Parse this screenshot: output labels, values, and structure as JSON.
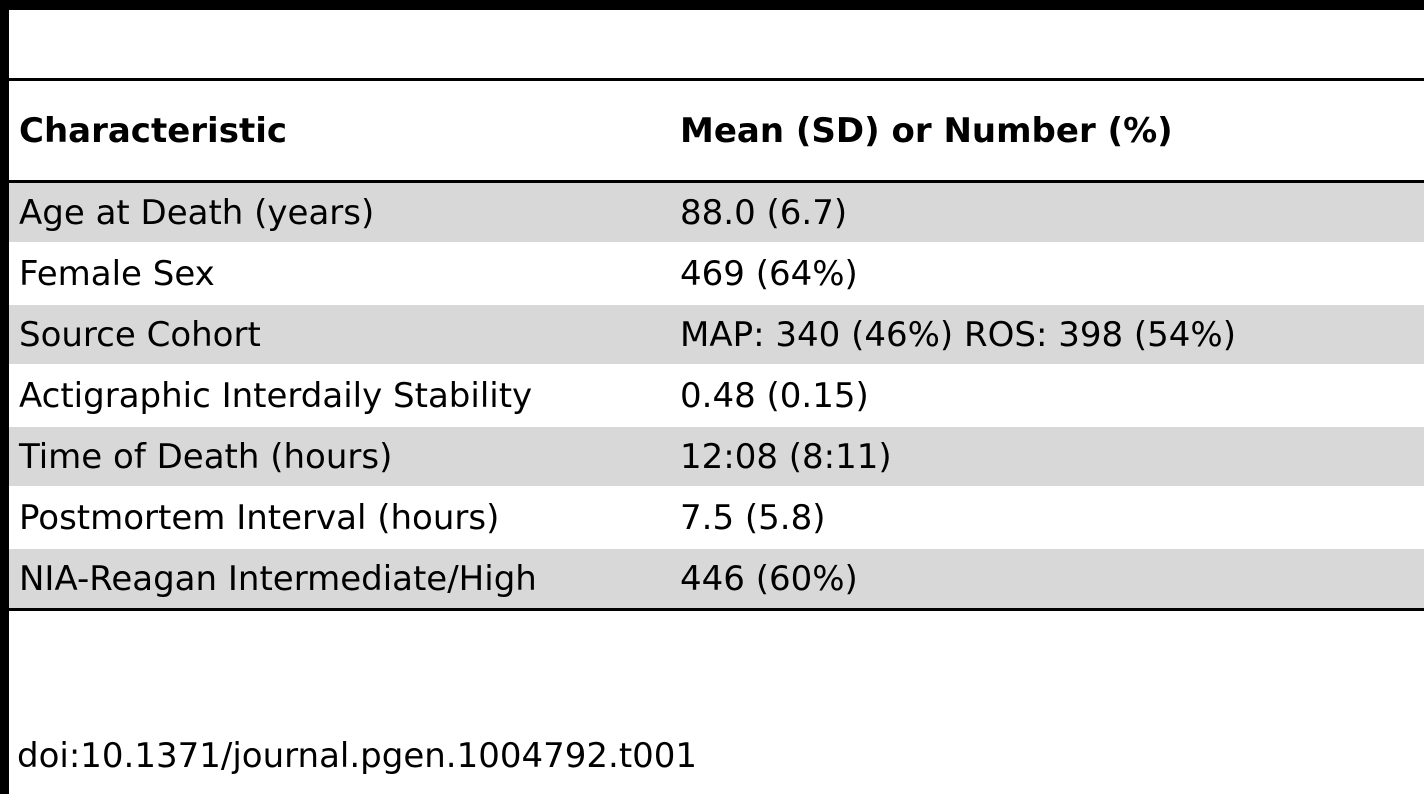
{
  "table": {
    "headers": [
      "Characteristic",
      "Mean (SD) or Number (%)"
    ],
    "rows": [
      [
        "Age at Death (years)",
        "88.0 (6.7)"
      ],
      [
        "Female Sex",
        "469 (64%)"
      ],
      [
        "Source Cohort",
        "MAP: 340 (46%) ROS: 398 (54%)"
      ],
      [
        "Actigraphic Interdaily Stability",
        "0.48 (0.15)"
      ],
      [
        "Time of Death (hours)",
        "12:08 (8:11)"
      ],
      [
        "Postmortem Interval (hours)",
        "7.5 (5.8)"
      ],
      [
        "NIA-Reagan Intermediate/High",
        "446 (60%)"
      ]
    ],
    "row_shading": "#d8d8d8"
  },
  "doi": "doi:10.1371/journal.pgen.1004792.t001"
}
